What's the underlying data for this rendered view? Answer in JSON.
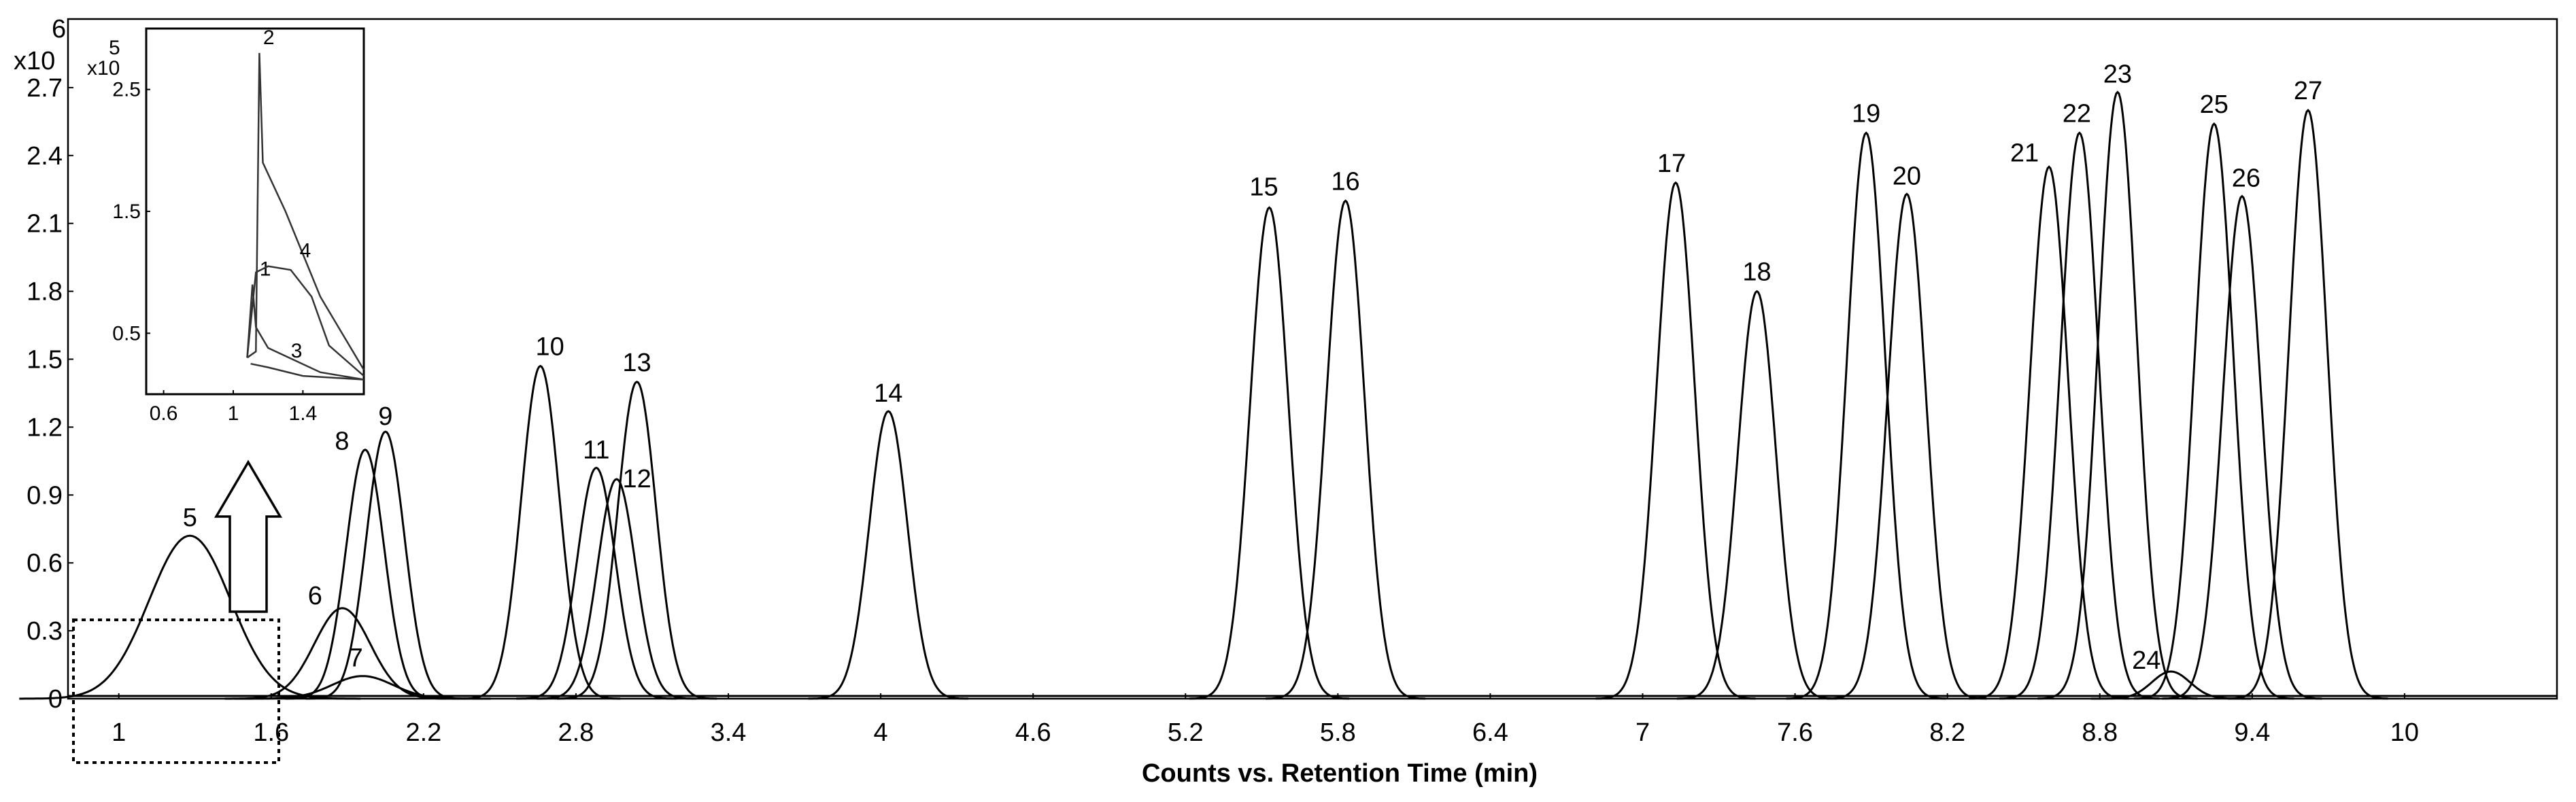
{
  "chart_data": {
    "type": "line",
    "title": "",
    "xlabel": "Counts vs. Retention Time (min)",
    "ylabel": "",
    "y_exponent_label": "x10",
    "y_exponent": "6",
    "xlim": [
      0.8,
      10.6
    ],
    "ylim": [
      0,
      3.0
    ],
    "x_ticks": [
      "1",
      "1.6",
      "2.2",
      "2.8",
      "3.4",
      "4",
      "4.6",
      "5.2",
      "5.8",
      "6.4",
      "7",
      "7.6",
      "8.2",
      "8.8",
      "9.4",
      "10"
    ],
    "y_ticks": [
      "0",
      "0.3",
      "0.6",
      "0.9",
      "1.2",
      "1.5",
      "1.8",
      "2.1",
      "2.4",
      "2.7"
    ],
    "top_tick_label": "6",
    "series": [
      {
        "name": "5",
        "rt": 1.28,
        "height": 0.72,
        "label": "5"
      },
      {
        "name": "6",
        "rt": 1.88,
        "height": 0.4,
        "label": "6"
      },
      {
        "name": "7",
        "rt": 1.96,
        "height": 0.1,
        "label": "7"
      },
      {
        "name": "8",
        "rt": 1.97,
        "height": 1.1,
        "label": "8"
      },
      {
        "name": "9",
        "rt": 2.05,
        "height": 1.18,
        "label": "9"
      },
      {
        "name": "10",
        "rt": 2.66,
        "height": 1.47,
        "label": "10"
      },
      {
        "name": "11",
        "rt": 2.88,
        "height": 1.02,
        "label": "11"
      },
      {
        "name": "12",
        "rt": 2.96,
        "height": 0.97,
        "label": "12"
      },
      {
        "name": "13",
        "rt": 3.04,
        "height": 1.4,
        "label": "13"
      },
      {
        "name": "14",
        "rt": 4.03,
        "height": 1.27,
        "label": "14"
      },
      {
        "name": "15",
        "rt": 5.53,
        "height": 2.17,
        "label": "15"
      },
      {
        "name": "16",
        "rt": 5.83,
        "height": 2.2,
        "label": "16"
      },
      {
        "name": "17",
        "rt": 7.13,
        "height": 2.28,
        "label": "17"
      },
      {
        "name": "18",
        "rt": 7.45,
        "height": 1.8,
        "label": "18"
      },
      {
        "name": "19",
        "rt": 7.88,
        "height": 2.5,
        "label": "19"
      },
      {
        "name": "20",
        "rt": 8.04,
        "height": 2.23,
        "label": "20"
      },
      {
        "name": "21",
        "rt": 8.6,
        "height": 2.35,
        "label": "21"
      },
      {
        "name": "22",
        "rt": 8.72,
        "height": 2.5,
        "label": "22"
      },
      {
        "name": "23",
        "rt": 8.87,
        "height": 2.68,
        "label": "23"
      },
      {
        "name": "24",
        "rt": 9.08,
        "height": 0.12,
        "label": "24"
      },
      {
        "name": "25",
        "rt": 9.25,
        "height": 2.54,
        "label": "25"
      },
      {
        "name": "26",
        "rt": 9.36,
        "height": 2.22,
        "label": "26"
      },
      {
        "name": "27",
        "rt": 9.62,
        "height": 2.6,
        "label": "27"
      }
    ],
    "inset": {
      "y_exponent_label": "x10",
      "y_exponent": "5",
      "xlim": [
        0.5,
        1.75
      ],
      "ylim": [
        0,
        3.0
      ],
      "x_ticks": [
        "0.6",
        "1",
        "1.4"
      ],
      "y_ticks": [
        "0.5",
        "1.5",
        "2.5"
      ],
      "peaks": [
        {
          "name": "1",
          "label": "1",
          "points": [
            [
              1.08,
              0.3
            ],
            [
              1.11,
              0.9
            ],
            [
              1.13,
              0.55
            ],
            [
              1.2,
              0.38
            ],
            [
              1.5,
              0.18
            ],
            [
              1.75,
              0.12
            ]
          ]
        },
        {
          "name": "2",
          "label": "2",
          "points": [
            [
              1.08,
              0.3
            ],
            [
              1.13,
              0.35
            ],
            [
              1.15,
              2.8
            ],
            [
              1.17,
              1.9
            ],
            [
              1.3,
              1.5
            ],
            [
              1.5,
              0.8
            ],
            [
              1.75,
              0.2
            ]
          ]
        },
        {
          "name": "3",
          "label": "3",
          "points": [
            [
              1.1,
              0.25
            ],
            [
              1.2,
              0.22
            ],
            [
              1.4,
              0.15
            ],
            [
              1.75,
              0.12
            ]
          ]
        },
        {
          "name": "4",
          "label": "4",
          "points": [
            [
              1.08,
              0.3
            ],
            [
              1.13,
              1.0
            ],
            [
              1.2,
              1.05
            ],
            [
              1.33,
              1.02
            ],
            [
              1.45,
              0.8
            ],
            [
              1.55,
              0.4
            ],
            [
              1.75,
              0.15
            ]
          ]
        }
      ]
    }
  }
}
